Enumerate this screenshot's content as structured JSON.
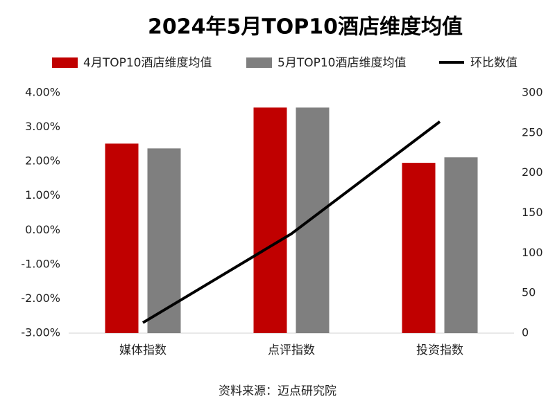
{
  "chart_data": {
    "type": "bar_line",
    "title": "2024年5月TOP10酒店维度均值",
    "source": "资料来源：迈点研究院",
    "categories": [
      "媒体指数",
      "点评指数",
      "投资指数"
    ],
    "series": [
      {
        "name": "4月TOP10酒店维度均值",
        "type": "bar",
        "color": "#c00000",
        "values": [
          2.52,
          3.57,
          1.96
        ]
      },
      {
        "name": "5月TOP10酒店维度均值",
        "type": "bar",
        "color": "#7f7f7f",
        "values": [
          2.38,
          3.57,
          2.12
        ]
      },
      {
        "name": "环比数值",
        "type": "line",
        "axis": "y2",
        "color": "#000000",
        "values": [
          13,
          124,
          264
        ]
      }
    ],
    "ylim": [
      -3,
      4
    ],
    "yticks": [
      {
        "value": -3,
        "label": "-3.00%"
      },
      {
        "value": -2,
        "label": "-2.00%"
      },
      {
        "value": -1,
        "label": "-1.00%"
      },
      {
        "value": 0,
        "label": "0.00%"
      },
      {
        "value": 1,
        "label": "1.00%"
      },
      {
        "value": 2,
        "label": "2.00%"
      },
      {
        "value": 3,
        "label": "3.00%"
      },
      {
        "value": 4,
        "label": "4.00%"
      }
    ],
    "y2lim": [
      0,
      300
    ],
    "y2ticks": [
      0,
      50,
      100,
      150,
      200,
      250,
      300
    ],
    "grid": false
  }
}
